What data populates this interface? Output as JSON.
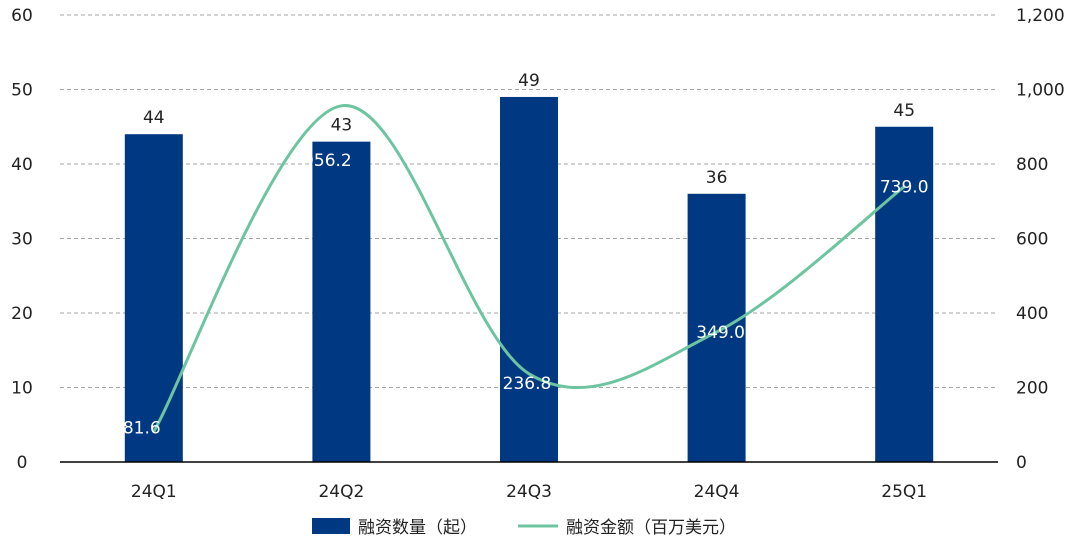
{
  "chart_data": {
    "type": "bar+line",
    "categories": [
      "24Q1",
      "24Q2",
      "24Q3",
      "24Q4",
      "25Q1"
    ],
    "series": [
      {
        "name": "融资数量（起）",
        "type": "bar",
        "axis": "left",
        "values": [
          44,
          43,
          49,
          36,
          45
        ],
        "labels": [
          "44",
          "43",
          "49",
          "36",
          "45"
        ],
        "color": "#003882"
      },
      {
        "name": "融资金额（百万美元）",
        "type": "line",
        "axis": "right",
        "values": [
          81.6,
          956.2,
          236.8,
          349.0,
          739.0
        ],
        "labels": [
          "81.6",
          "956.2",
          "236.8",
          "349.0",
          "739.0"
        ],
        "color": "#6cc5a0"
      }
    ],
    "y_left": {
      "min": 0,
      "max": 60,
      "ticks": [
        "0",
        "10",
        "20",
        "30",
        "40",
        "50",
        "60"
      ]
    },
    "y_right": {
      "min": 0,
      "max": 1200,
      "ticks": [
        "0",
        "200",
        "400",
        "600",
        "800",
        "1,000",
        "1,200"
      ]
    },
    "grid": true,
    "legend_position": "bottom"
  }
}
